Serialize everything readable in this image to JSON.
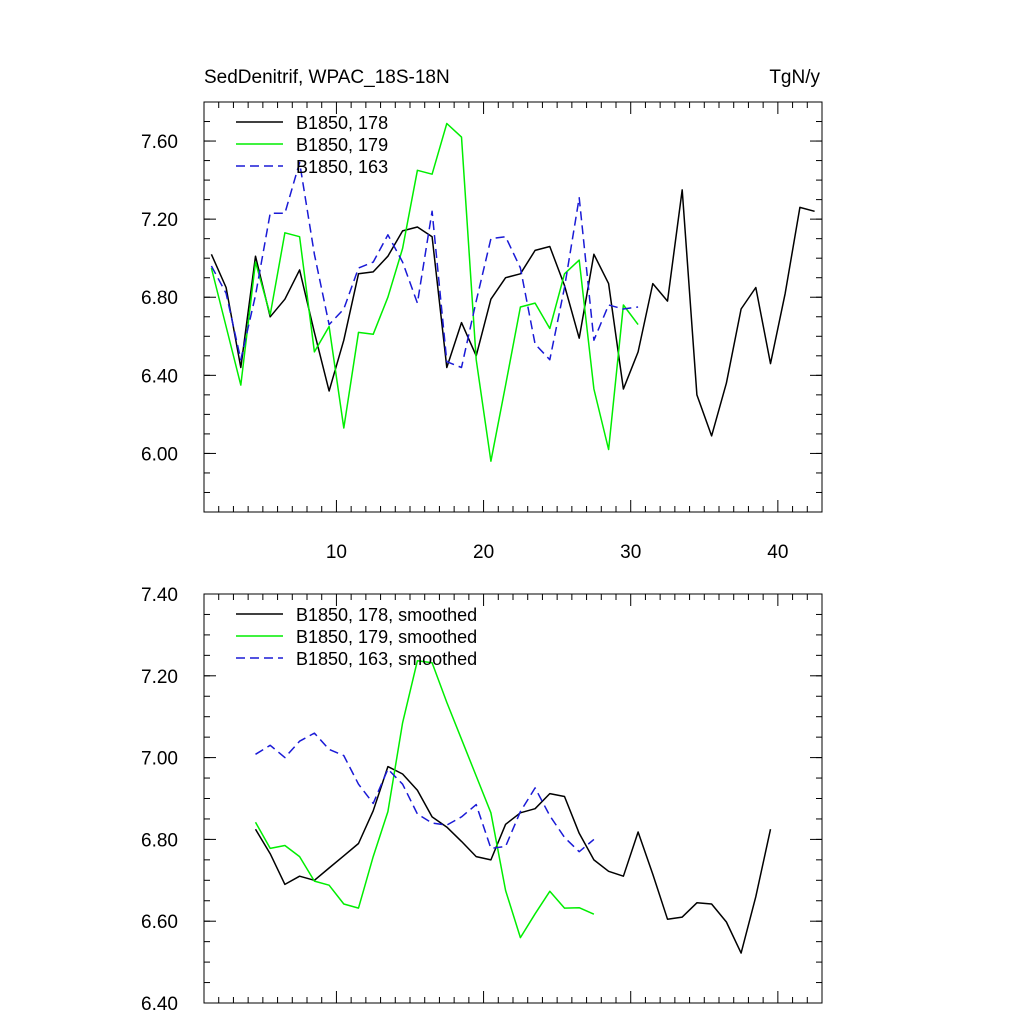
{
  "chart_data": [
    {
      "type": "line",
      "title_left": "SedDenitrif, WPAC_18S-18N",
      "title_right": "TgN/y",
      "xlim": [
        1,
        43
      ],
      "ylim": [
        5.7,
        7.8
      ],
      "x_ticks": [
        10,
        20,
        30,
        40
      ],
      "x_tick_labels": [
        "10",
        "20",
        "30",
        "40"
      ],
      "y_ticks": [
        6.0,
        6.4,
        6.8,
        7.2,
        7.6
      ],
      "y_tick_labels": [
        "6.00",
        "6.40",
        "6.80",
        "7.20",
        "7.60"
      ],
      "legend_position": "top-left",
      "series": [
        {
          "name": "B1850, 178",
          "color": "#000000",
          "dash": "solid",
          "x": [
            1.5,
            2.5,
            3.5,
            4.5,
            5.5,
            6.5,
            7.5,
            8.5,
            9.5,
            10.5,
            11.5,
            12.5,
            13.5,
            14.5,
            15.5,
            16.5,
            17.5,
            18.5,
            19.5,
            20.5,
            21.5,
            22.5,
            23.5,
            24.5,
            25.5,
            26.5,
            27.5,
            28.5,
            29.5,
            30.5,
            31.5,
            32.5,
            33.5,
            34.5,
            35.5,
            36.5,
            37.5,
            38.5,
            39.5,
            40.5,
            41.5,
            42.5
          ],
          "y": [
            7.02,
            6.85,
            6.44,
            7.01,
            6.7,
            6.79,
            6.94,
            6.62,
            6.32,
            6.58,
            6.92,
            6.93,
            7.01,
            7.14,
            7.16,
            7.11,
            6.44,
            6.67,
            6.5,
            6.79,
            6.9,
            6.92,
            7.04,
            7.06,
            6.86,
            6.59,
            7.02,
            6.87,
            6.33,
            6.52,
            6.87,
            6.78,
            7.35,
            6.3,
            6.09,
            6.36,
            6.74,
            6.85,
            6.46,
            6.82,
            7.26,
            7.24
          ]
        },
        {
          "name": "B1850, 179",
          "color": "#00ee00",
          "dash": "solid",
          "x": [
            1.5,
            2.5,
            3.5,
            4.5,
            5.5,
            6.5,
            7.5,
            8.5,
            9.5,
            10.5,
            11.5,
            12.5,
            13.5,
            14.5,
            15.5,
            16.5,
            17.5,
            18.5,
            19.5,
            20.5,
            21.5,
            22.5,
            23.5,
            24.5,
            25.5,
            26.5,
            27.5,
            28.5,
            29.5,
            30.5
          ],
          "y": [
            6.95,
            6.65,
            6.35,
            6.98,
            6.71,
            7.13,
            7.11,
            6.52,
            6.65,
            6.13,
            6.62,
            6.61,
            6.8,
            7.05,
            7.45,
            7.43,
            7.69,
            7.62,
            6.48,
            5.96,
            6.35,
            6.75,
            6.77,
            6.64,
            6.92,
            6.99,
            6.33,
            6.02,
            6.76,
            6.66
          ]
        },
        {
          "name": "B1850, 163",
          "color": "#1a1ad6",
          "dash": "dashed",
          "x": [
            1.5,
            2.5,
            3.5,
            4.5,
            5.5,
            6.5,
            7.5,
            8.5,
            9.5,
            10.5,
            11.5,
            12.5,
            13.5,
            14.5,
            15.5,
            16.5,
            17.5,
            18.5,
            19.5,
            20.5,
            21.5,
            22.5,
            23.5,
            24.5,
            25.5,
            26.5,
            27.5,
            28.5,
            29.5,
            30.5
          ],
          "y": [
            6.96,
            6.82,
            6.48,
            6.81,
            7.23,
            7.23,
            7.49,
            7.02,
            6.66,
            6.74,
            6.95,
            6.98,
            7.12,
            6.98,
            6.77,
            7.24,
            6.47,
            6.44,
            6.78,
            7.1,
            7.11,
            6.95,
            6.56,
            6.48,
            6.85,
            7.31,
            6.58,
            6.76,
            6.74,
            6.75
          ]
        }
      ]
    },
    {
      "type": "line",
      "xlim": [
        1,
        43
      ],
      "ylim": [
        6.4,
        7.4
      ],
      "x_ticks": [
        10,
        20,
        30,
        40
      ],
      "y_ticks": [
        6.4,
        6.6,
        6.8,
        7.0,
        7.2,
        7.4
      ],
      "y_tick_labels": [
        "6.40",
        "6.60",
        "6.80",
        "7.00",
        "7.20",
        "7.40"
      ],
      "legend_position": "top-left",
      "series": [
        {
          "name": "B1850, 178, smoothed",
          "color": "#000000",
          "dash": "solid",
          "x": [
            4.5,
            5.5,
            6.5,
            7.5,
            8.5,
            9.5,
            10.5,
            11.5,
            12.5,
            13.5,
            14.5,
            15.5,
            16.5,
            17.5,
            18.5,
            19.5,
            20.5,
            21.5,
            22.5,
            23.5,
            24.5,
            25.5,
            26.5,
            27.5,
            28.5,
            29.5,
            30.5,
            31.5,
            32.5,
            33.5,
            34.5,
            35.5,
            36.5,
            37.5,
            38.5,
            39.5
          ],
          "y": [
            6.825,
            6.765,
            6.69,
            6.71,
            6.7,
            6.73,
            6.76,
            6.79,
            6.87,
            6.978,
            6.96,
            6.92,
            6.855,
            6.83,
            6.795,
            6.758,
            6.75,
            6.837,
            6.865,
            6.875,
            6.912,
            6.905,
            6.815,
            6.75,
            6.722,
            6.71,
            6.818,
            6.715,
            6.605,
            6.61,
            6.645,
            6.642,
            6.598,
            6.522,
            6.66,
            6.825
          ]
        },
        {
          "name": "B1850, 179, smoothed",
          "color": "#00ee00",
          "dash": "solid",
          "x": [
            4.5,
            5.5,
            6.5,
            7.5,
            8.5,
            9.5,
            10.5,
            11.5,
            12.5,
            13.5,
            14.5,
            15.5,
            16.5,
            17.5,
            18.5,
            19.5,
            20.5,
            21.5,
            22.5,
            23.5,
            24.5,
            25.5,
            26.5,
            27.5
          ],
          "y": [
            6.842,
            6.778,
            6.785,
            6.758,
            6.698,
            6.688,
            6.642,
            6.632,
            6.758,
            6.868,
            7.085,
            7.237,
            7.232,
            7.135,
            7.045,
            6.955,
            6.865,
            6.675,
            6.56,
            6.618,
            6.673,
            6.632,
            6.633,
            6.617
          ]
        },
        {
          "name": "B1850, 163, smoothed",
          "color": "#1a1ad6",
          "dash": "dashed",
          "x": [
            4.5,
            5.5,
            6.5,
            7.5,
            8.5,
            9.5,
            10.5,
            11.5,
            12.5,
            13.5,
            14.5,
            15.5,
            16.5,
            17.5,
            18.5,
            19.5,
            20.5,
            21.5,
            22.5,
            23.5,
            24.5,
            25.5,
            26.5,
            27.5
          ],
          "y": [
            7.008,
            7.03,
            7.0,
            7.04,
            7.06,
            7.02,
            7.005,
            6.935,
            6.888,
            6.972,
            6.935,
            6.862,
            6.84,
            6.835,
            6.855,
            6.885,
            6.778,
            6.783,
            6.868,
            6.926,
            6.858,
            6.805,
            6.77,
            6.8
          ]
        }
      ]
    }
  ]
}
